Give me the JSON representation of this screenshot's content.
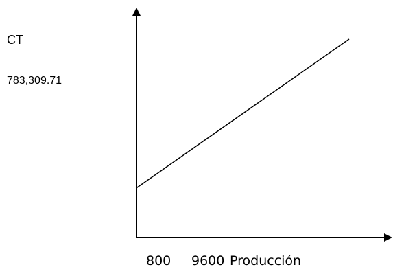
{
  "chart_data": {
    "type": "line",
    "title": "",
    "ylabel": "CT",
    "xlabel": "Producción",
    "y_annotation": "783,309.71",
    "x_ticks": [
      "800",
      "9600"
    ],
    "grid": false,
    "legend": "none",
    "series": [
      {
        "x": [
          0,
          1
        ],
        "y": [
          0.25,
          1
        ]
      }
    ]
  }
}
